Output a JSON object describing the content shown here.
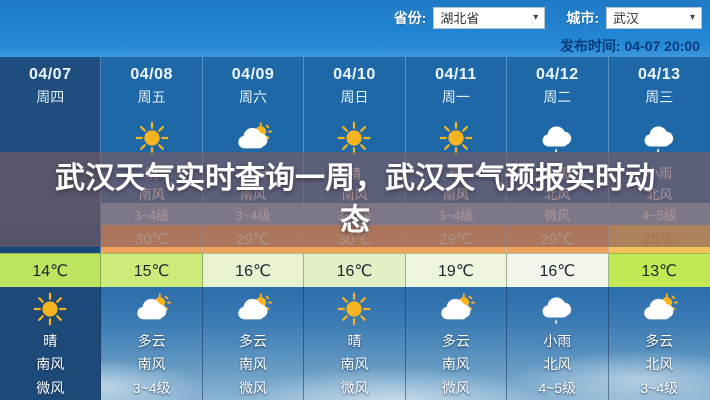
{
  "topbar": {
    "province_label": "省份:",
    "province_value": "湖北省",
    "city_label": "城市:",
    "city_value": "武汉",
    "publish_time": "发布时间: 04-07 20:00"
  },
  "overlay_title": "武汉天气实时查询一周，武汉天气预报实时动态",
  "colors": {
    "topbar_blue": "#2489d6",
    "table_blue": "#1e68a8",
    "selected_column_navy": "#1d4e7f",
    "high_temp_orange": "#f1a35b",
    "high_temp_yellow": "#f5c25c",
    "low_temp_green": "#cdeb7a",
    "overlay_tint": "rgba(128,90,94,0.62)"
  },
  "columns": [
    {
      "date": "04/07",
      "week": "周四",
      "day": {
        "icon": "",
        "text": "",
        "wind": "",
        "level": "",
        "high": ""
      },
      "low": "14℃",
      "night": {
        "icon": "sunny",
        "text": "晴",
        "wind": "南风",
        "level": "微风"
      }
    },
    {
      "date": "04/08",
      "week": "周五",
      "day": {
        "icon": "sunny",
        "text": "晴",
        "wind": "南风",
        "level": "3~4级",
        "high": "30℃"
      },
      "low": "15℃",
      "night": {
        "icon": "partly-cloudy",
        "text": "多云",
        "wind": "南风",
        "level": "3~4级"
      }
    },
    {
      "date": "04/09",
      "week": "周六",
      "day": {
        "icon": "partly-cloudy",
        "text": "多云",
        "wind": "南风",
        "level": "3~4级",
        "high": "29℃"
      },
      "low": "16℃",
      "night": {
        "icon": "partly-cloudy",
        "text": "多云",
        "wind": "南风",
        "level": "微风"
      }
    },
    {
      "date": "04/10",
      "week": "周日",
      "day": {
        "icon": "sunny",
        "text": "晴",
        "wind": "南风",
        "level": "3~4级",
        "high": "30℃"
      },
      "low": "16℃",
      "night": {
        "icon": "sunny",
        "text": "晴",
        "wind": "南风",
        "level": "微风"
      }
    },
    {
      "date": "04/11",
      "week": "周一",
      "day": {
        "icon": "sunny",
        "text": "晴",
        "wind": "南风",
        "level": "3~4级",
        "high": "29℃"
      },
      "low": "19℃",
      "night": {
        "icon": "partly-cloudy",
        "text": "多云",
        "wind": "南风",
        "level": "微风"
      }
    },
    {
      "date": "04/12",
      "week": "周二",
      "day": {
        "icon": "light-rain",
        "text": "小雨",
        "wind": "北风",
        "level": "微风",
        "high": "29℃"
      },
      "low": "16℃",
      "night": {
        "icon": "light-rain",
        "text": "小雨",
        "wind": "北风",
        "level": "4~5级"
      }
    },
    {
      "date": "04/13",
      "week": "周三",
      "day": {
        "icon": "light-rain",
        "text": "小雨",
        "wind": "北风",
        "level": "4~5级",
        "high": "25℃"
      },
      "low": "13℃",
      "night": {
        "icon": "partly-cloudy",
        "text": "多云",
        "wind": "北风",
        "level": "3~4级"
      }
    }
  ]
}
